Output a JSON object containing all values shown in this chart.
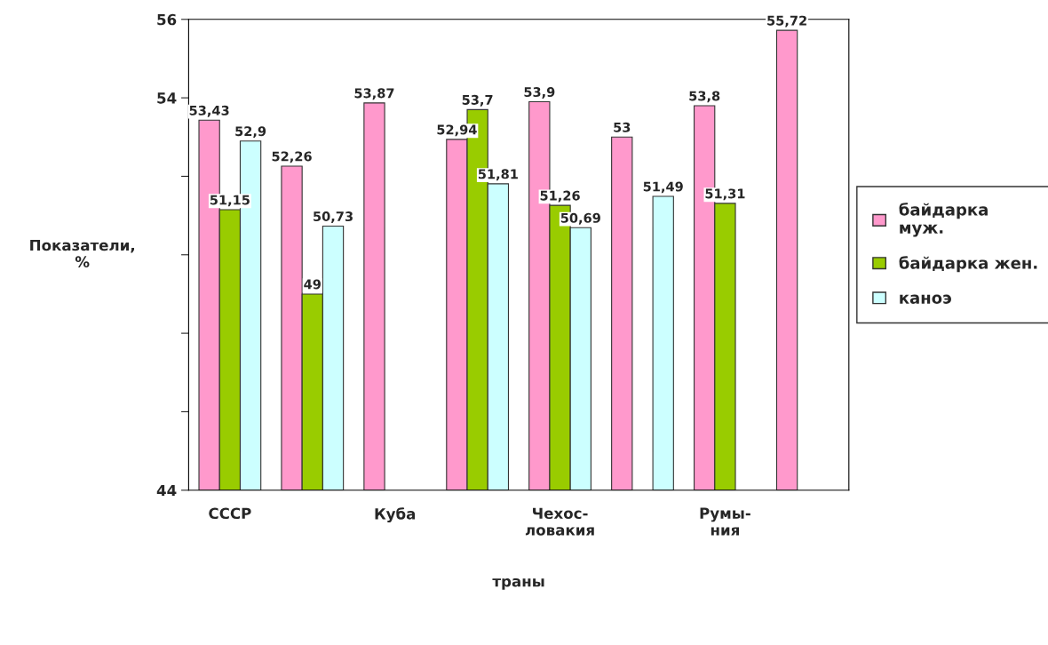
{
  "chart_data": {
    "type": "bar",
    "categories": [
      "СССР",
      null,
      "Куба",
      null,
      "Чехос-\nловакия",
      null,
      "Румы-\nния",
      null
    ],
    "xlabel": "траны",
    "ylabel": "Показатели,\n%",
    "ylim": [
      44,
      56
    ],
    "yticks": [
      44,
      {
        "value": 46,
        "label": null
      },
      {
        "value": 48,
        "label": null
      },
      {
        "value": 50,
        "label": null
      },
      {
        "value": 52,
        "label": null
      },
      54,
      56
    ],
    "grid": false,
    "legend": "right",
    "series": [
      {
        "name": "байдарка\nмуж.",
        "color": "#ff99cc",
        "values": [
          53.43,
          52.26,
          53.87,
          52.94,
          53.9,
          53,
          53.8,
          55.72
        ],
        "value_labels": [
          "53,43",
          "52,26",
          "53,87",
          "52,94",
          "53,9",
          "53",
          "53,8",
          "55,72"
        ]
      },
      {
        "name": "байдарка жен.",
        "color": "#99cc00",
        "values": [
          51.15,
          49,
          null,
          53.7,
          51.26,
          null,
          51.31,
          null
        ],
        "value_labels": [
          "51,15",
          "49",
          null,
          "53,7",
          "51,26",
          null,
          "51,31",
          null
        ]
      },
      {
        "name": "каноэ",
        "color": "#ccffff",
        "values": [
          52.9,
          50.73,
          null,
          51.81,
          50.69,
          51.49,
          null,
          null
        ],
        "value_labels": [
          "52,9",
          "50,73",
          null,
          "51,81",
          "50,69",
          "51,49",
          null,
          null
        ]
      }
    ]
  }
}
